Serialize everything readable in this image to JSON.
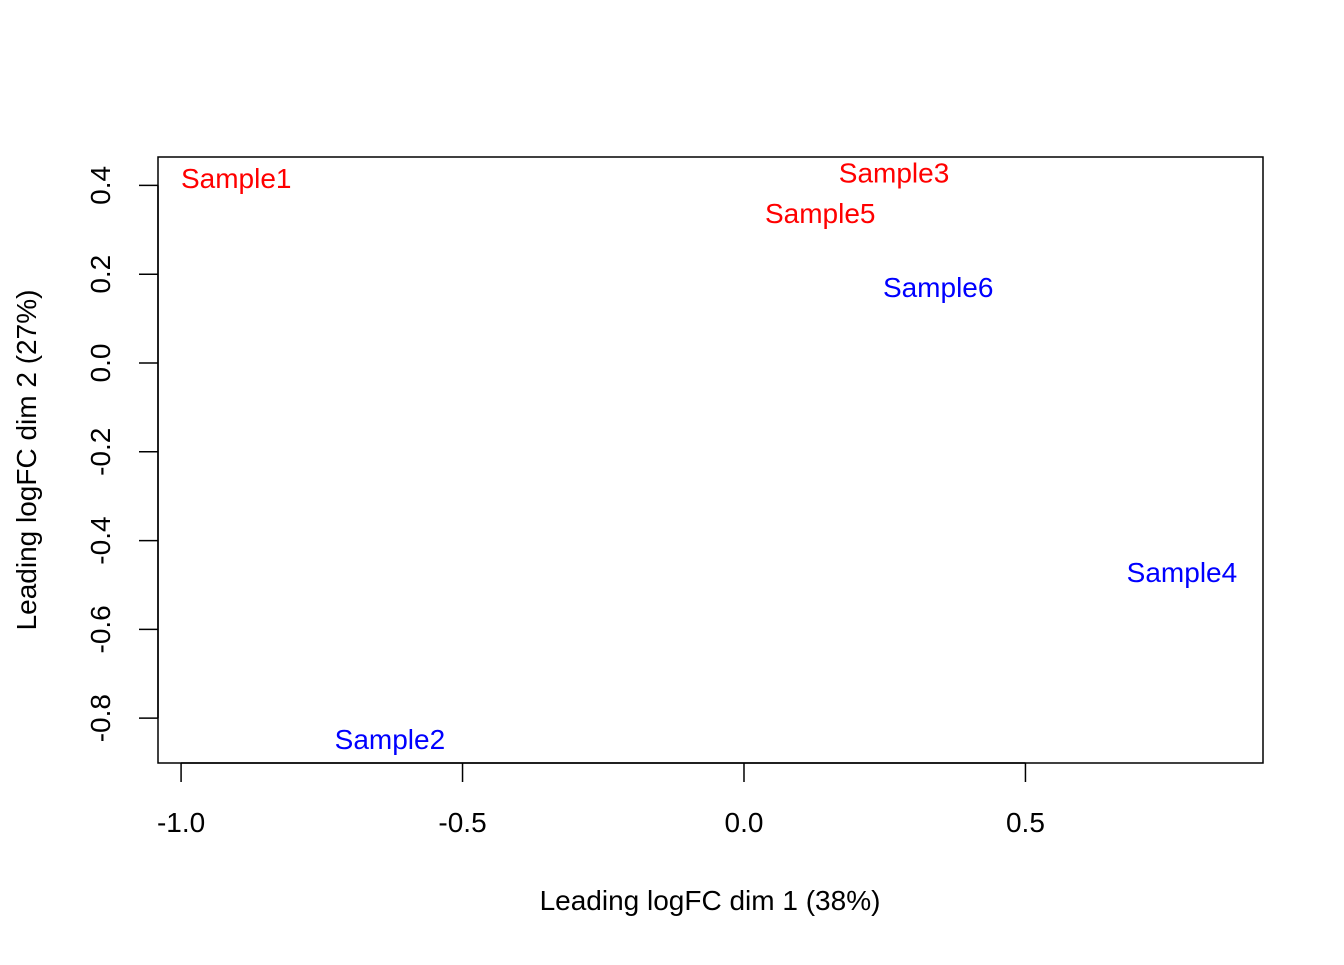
{
  "chart_data": {
    "type": "scatter",
    "title": "",
    "xlabel": "Leading logFC dim 1 (38%)",
    "ylabel": "Leading logFC dim 2 (27%)",
    "xlim": [
      -1.041,
      0.922
    ],
    "ylim": [
      -0.901,
      0.464
    ],
    "xticks": [
      -1.0,
      -0.5,
      0.0,
      0.5
    ],
    "xtick_labels": [
      "-1.0",
      "-0.5",
      "0.0",
      "0.5"
    ],
    "yticks": [
      -0.8,
      -0.6,
      -0.4,
      -0.2,
      0.0,
      0.2,
      0.4
    ],
    "ytick_labels": [
      "-0.8",
      "-0.6",
      "-0.4",
      "-0.2",
      "0.0",
      "0.2",
      "0.4"
    ],
    "grid": false,
    "points": [
      {
        "label": "Sample1",
        "x": -0.902,
        "y": 0.417,
        "color": "#ff0000"
      },
      {
        "label": "Sample2",
        "x": -0.629,
        "y": -0.847,
        "color": "#0000ff"
      },
      {
        "label": "Sample3",
        "x": 0.231,
        "y": 0.388,
        "color": "#ff0000"
      },
      {
        "label": "Sample4",
        "x": 0.778,
        "y": -0.471,
        "color": "#0000ff"
      },
      {
        "label": "Sample5",
        "x": 0.171,
        "y": 0.374,
        "color": "#ff0000"
      },
      {
        "label": "Sample6",
        "x": 0.345,
        "y": 0.171,
        "color": "#0000ff"
      }
    ]
  }
}
